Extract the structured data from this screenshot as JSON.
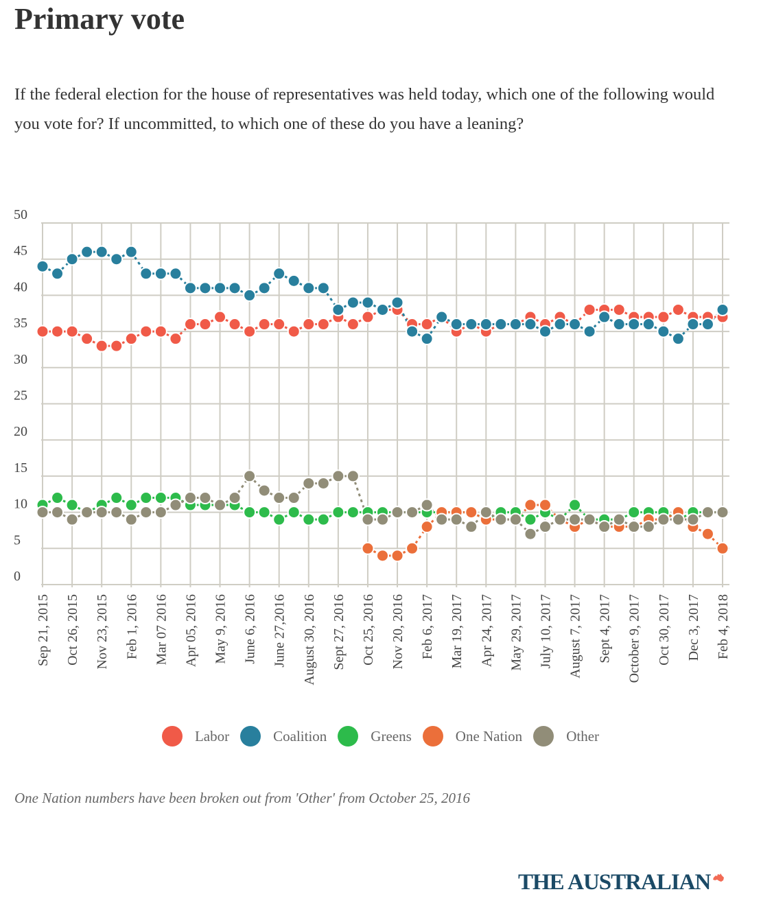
{
  "header": {
    "title": "Primary vote",
    "subtitle": "If the federal election for the house of representatives was held today, which one of the following would you vote for? If uncommitted, to which one of these do you have a leaning?"
  },
  "note": "One Nation numbers have been broken out from 'Other' from October 25, 2016",
  "brand": {
    "name": "THE AUSTRALIAN",
    "icon": "australia-map-icon",
    "icon_color": "#f26b55"
  },
  "chart_data": {
    "type": "line",
    "title": "Primary vote",
    "xlabel": "",
    "ylabel": "",
    "ylim": [
      0,
      50
    ],
    "yticks": [
      0,
      5,
      10,
      15,
      20,
      25,
      30,
      35,
      40,
      45,
      50
    ],
    "grid": true,
    "legend_position": "bottom-center",
    "tick_labels": [
      "Sep 21, 2015",
      "Oct 26, 2015",
      "Nov 23, 2015",
      "Feb 1, 2016",
      "Mar 07 2016",
      "Apr 05, 2016",
      "May 9, 2016",
      "June 6, 2016",
      "June 27,2016",
      "August 30, 2016",
      "Sept 27, 2016",
      "Oct 25, 2016",
      "Nov 20, 2016",
      "Feb 6, 2017",
      "Mar 19, 2017",
      "Apr 24, 2017",
      "May 29, 2017",
      "July 10, 2017",
      "August 7, 2017",
      "Sept 4, 2017",
      "October 9, 2017",
      "Oct 30, 2017",
      "Dec 3, 2017",
      "Feb 4, 2018"
    ],
    "point_count": 47,
    "note": "Labelled ticks fall on every second poll point",
    "series": [
      {
        "name": "Labor",
        "color": "#f05a48",
        "values": [
          35,
          35,
          35,
          34,
          33,
          33,
          34,
          35,
          35,
          34,
          36,
          36,
          37,
          36,
          35,
          36,
          36,
          35,
          36,
          36,
          37,
          36,
          37,
          38,
          38,
          36,
          36,
          37,
          35,
          36,
          35,
          36,
          36,
          37,
          36,
          37,
          36,
          38,
          38,
          38,
          37,
          37,
          37,
          38,
          37,
          37,
          37
        ]
      },
      {
        "name": "Coalition",
        "color": "#287f9d",
        "values": [
          44,
          43,
          45,
          46,
          46,
          45,
          46,
          43,
          43,
          43,
          41,
          41,
          41,
          41,
          40,
          41,
          43,
          42,
          41,
          41,
          38,
          39,
          39,
          38,
          39,
          35,
          34,
          37,
          36,
          36,
          36,
          36,
          36,
          36,
          35,
          36,
          36,
          35,
          37,
          36,
          36,
          36,
          35,
          34,
          36,
          36,
          38
        ]
      },
      {
        "name": "Greens",
        "color": "#2dbb4b",
        "values": [
          11,
          12,
          11,
          10,
          11,
          12,
          11,
          12,
          12,
          12,
          11,
          11,
          11,
          11,
          10,
          10,
          9,
          10,
          9,
          9,
          10,
          10,
          10,
          10,
          10,
          10,
          10,
          10,
          10,
          10,
          9,
          10,
          10,
          9,
          10,
          9,
          11,
          9,
          9,
          9,
          10,
          10,
          10,
          9,
          10,
          10,
          10
        ]
      },
      {
        "name": "One Nation",
        "color": "#eb6f3a",
        "values": [
          null,
          null,
          null,
          null,
          null,
          null,
          null,
          null,
          null,
          null,
          null,
          null,
          null,
          null,
          null,
          null,
          null,
          null,
          null,
          null,
          null,
          null,
          5,
          4,
          4,
          5,
          8,
          10,
          10,
          10,
          9,
          9,
          9,
          11,
          11,
          9,
          8,
          9,
          8,
          8,
          8,
          9,
          9,
          10,
          8,
          7,
          5
        ]
      },
      {
        "name": "Other",
        "color": "#918d78",
        "values": [
          10,
          10,
          9,
          10,
          10,
          10,
          9,
          10,
          10,
          11,
          12,
          12,
          11,
          12,
          15,
          13,
          12,
          12,
          14,
          14,
          15,
          15,
          9,
          9,
          10,
          10,
          11,
          9,
          9,
          8,
          10,
          9,
          9,
          7,
          8,
          9,
          9,
          9,
          8,
          9,
          8,
          8,
          9,
          9,
          9,
          10,
          10
        ]
      }
    ]
  }
}
